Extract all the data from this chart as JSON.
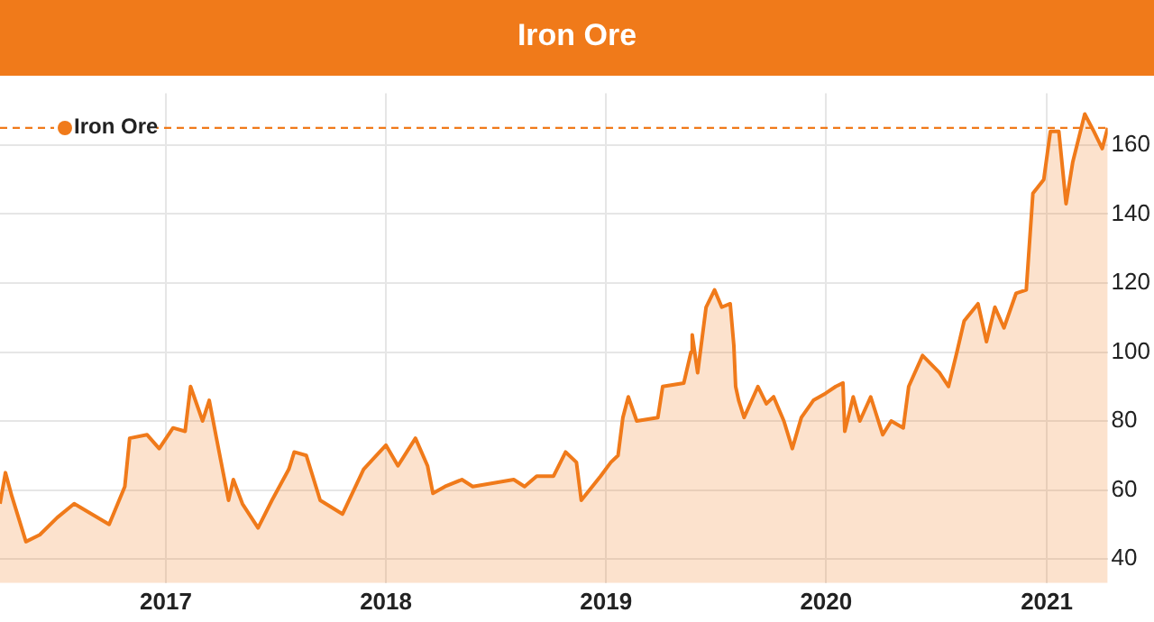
{
  "chart_data": {
    "type": "area",
    "title": "Iron Ore",
    "x": [
      "2016-04-01",
      "2016-04-10",
      "2016-04-21",
      "2016-05-14",
      "2016-06-06",
      "2016-07-05",
      "2016-08-02",
      "2016-08-31",
      "2016-09-29",
      "2016-10-25",
      "2016-11-02",
      "2016-12-01",
      "2016-12-21",
      "2017-01-13",
      "2017-02-02",
      "2017-02-11",
      "2017-03-03",
      "2017-03-14",
      "2017-03-26",
      "2017-04-15",
      "2017-04-23",
      "2017-05-08",
      "2017-06-03",
      "2017-06-26",
      "2017-07-24",
      "2017-08-02",
      "2017-08-22",
      "2017-09-14",
      "2017-10-21",
      "2017-11-25",
      "2018-01-01",
      "2018-01-21",
      "2018-02-19",
      "2018-03-11",
      "2018-03-20",
      "2018-04-09",
      "2018-05-07",
      "2018-05-25",
      "2018-08-01",
      "2018-08-19",
      "2018-09-08",
      "2018-10-06",
      "2018-10-26",
      "2018-11-13",
      "2018-11-21",
      "2018-12-23",
      "2019-01-09",
      "2019-01-21",
      "2019-01-29",
      "2019-02-07",
      "2019-02-21",
      "2019-03-28",
      "2019-04-05",
      "2019-05-10",
      "2019-05-22",
      "2019-05-24",
      "2019-06-02",
      "2019-06-16",
      "2019-06-30",
      "2019-07-12",
      "2019-07-26",
      "2019-08-01",
      "2019-08-04",
      "2019-08-09",
      "2019-08-18",
      "2019-09-10",
      "2019-09-24",
      "2019-10-06",
      "2019-10-23",
      "2019-11-06",
      "2019-11-21",
      "2019-12-11",
      "2019-12-31",
      "2020-01-17",
      "2020-01-29",
      "2020-02-01",
      "2020-02-15",
      "2020-02-26",
      "2020-03-15",
      "2020-04-04",
      "2020-04-18",
      "2020-05-08",
      "2020-05-17",
      "2020-06-09",
      "2020-07-07",
      "2020-07-22",
      "2020-08-05",
      "2020-08-17",
      "2020-09-09",
      "2020-09-23",
      "2020-10-07",
      "2020-10-22",
      "2020-11-11",
      "2020-11-28",
      "2020-12-09",
      "2020-12-27",
      "2021-01-07",
      "2021-01-21",
      "2021-02-02",
      "2021-02-13",
      "2021-03-05",
      "2021-03-20",
      "2021-04-03",
      "2021-04-12"
    ],
    "series": [
      {
        "color": "#f07a1a",
        "values": [
          56,
          65,
          58,
          45,
          47,
          52,
          56,
          53,
          50,
          61,
          75,
          76,
          72,
          78,
          77,
          90,
          80,
          86,
          75,
          57,
          63,
          56,
          49,
          57,
          66,
          71,
          70,
          57,
          53,
          66,
          73,
          67,
          75,
          67,
          59,
          61,
          63,
          61,
          63,
          61,
          64,
          64,
          71,
          68,
          57,
          64,
          68,
          70,
          81,
          87,
          80,
          81,
          90,
          91,
          100,
          105,
          94,
          113,
          118,
          113,
          114,
          102,
          90,
          86,
          81,
          90,
          85,
          87,
          80,
          72,
          81,
          86,
          88,
          90,
          91,
          77,
          87,
          80,
          87,
          76,
          80,
          78,
          90,
          99,
          94,
          90,
          100,
          109,
          114,
          103,
          113,
          107,
          117,
          118,
          146,
          150,
          164,
          164,
          143,
          155,
          169,
          164,
          159,
          165
        ]
      }
    ],
    "xlim": [
      "2016-04-01",
      "2021-04-12"
    ],
    "xticks": [
      "2017",
      "2018",
      "2019",
      "2020",
      "2021"
    ],
    "ylim": [
      33,
      175
    ],
    "yticks": [
      40,
      60,
      80,
      100,
      120,
      140,
      160
    ],
    "ref_lines": [
      {
        "axis": "y",
        "value": 165,
        "label": "Iron Ore",
        "color": "#f07a1a",
        "line_style": "dashed"
      }
    ],
    "grid": true,
    "legend": false,
    "marker": "none",
    "line_style": "solid"
  }
}
